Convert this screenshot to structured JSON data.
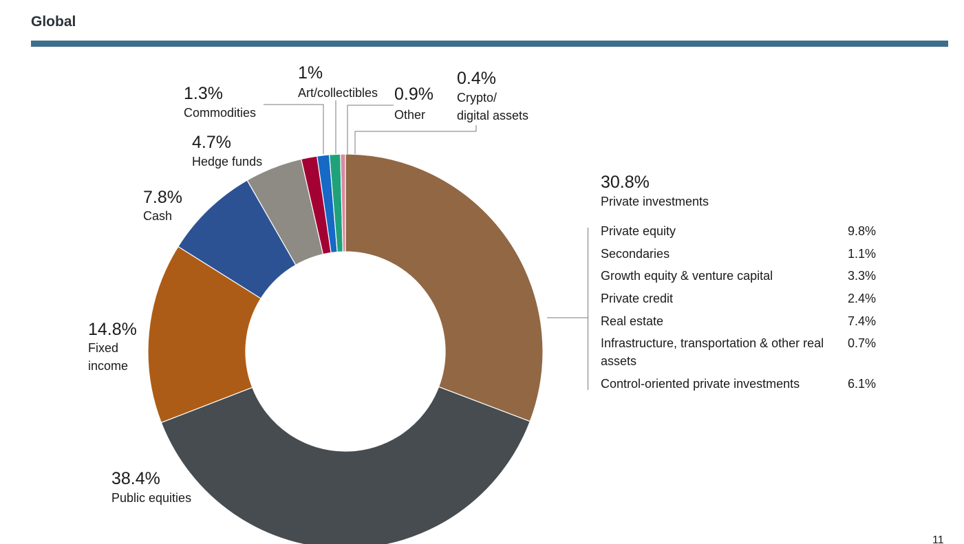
{
  "header": {
    "title": "Global"
  },
  "chart_data": {
    "type": "pie",
    "donut": true,
    "slices": [
      {
        "pct_label": "30.8%",
        "name_lines": [
          "Private investments"
        ],
        "value": 30.8,
        "color": "#916744"
      },
      {
        "pct_label": "38.4%",
        "name_lines": [
          "Public equities"
        ],
        "value": 38.4,
        "color": "#464c4f"
      },
      {
        "pct_label": "14.8%",
        "name_lines": [
          "Fixed",
          "income"
        ],
        "value": 14.8,
        "color": "#ad5c17"
      },
      {
        "pct_label": "7.8%",
        "name_lines": [
          "Cash"
        ],
        "value": 7.8,
        "color": "#2d5294"
      },
      {
        "pct_label": "4.7%",
        "name_lines": [
          "Hedge funds"
        ],
        "value": 4.7,
        "color": "#8d8b84"
      },
      {
        "pct_label": "1.3%",
        "name_lines": [
          "Commodities"
        ],
        "value": 1.3,
        "color": "#a30034"
      },
      {
        "pct_label": "1%",
        "name_lines": [
          "Art/collectibles"
        ],
        "value": 1.0,
        "color": "#1669c4"
      },
      {
        "pct_label": "0.9%",
        "name_lines": [
          "Other"
        ],
        "value": 0.9,
        "color": "#1fa27a"
      },
      {
        "pct_label": "0.4%",
        "name_lines": [
          "Crypto/",
          "digital assets"
        ],
        "value": 0.4,
        "color": "#d88ba0"
      }
    ],
    "breakdown": {
      "parent": "Private investments",
      "items": [
        {
          "name": "Private equity",
          "value": "9.8%"
        },
        {
          "name": "Secondaries",
          "value": "1.1%"
        },
        {
          "name": "Growth equity & venture capital",
          "value": "3.3%"
        },
        {
          "name": "Private credit",
          "value": "2.4%"
        },
        {
          "name": "Real estate",
          "value": "7.4%"
        },
        {
          "name": "Infrastructure, transportation & other real assets",
          "value": "0.7%"
        },
        {
          "name": "Control-oriented private investments",
          "value": "6.1%"
        }
      ]
    }
  },
  "footer": {
    "page_number": "11"
  }
}
